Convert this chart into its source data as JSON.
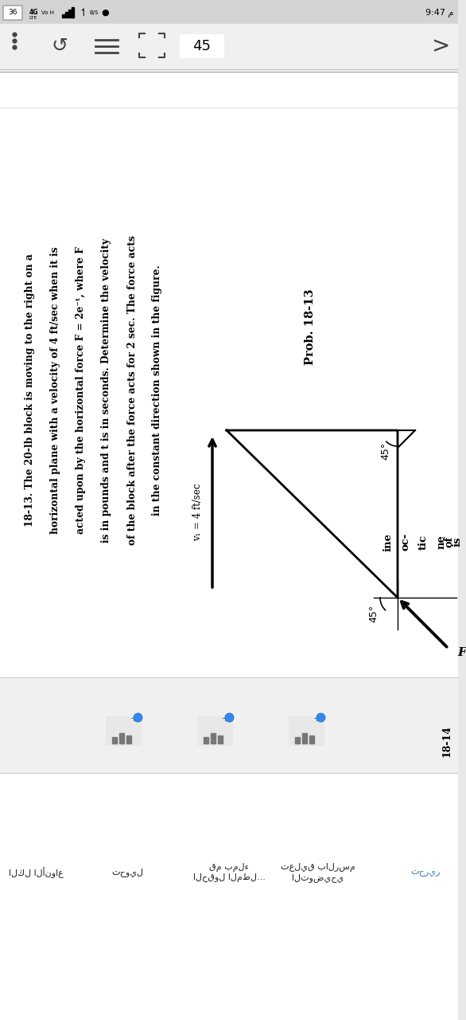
{
  "bg_color": "#e8e8e8",
  "page_bg": "#ffffff",
  "status_bar_text": "9:47 م",
  "nav_number": "45",
  "problem_text_lines": [
    "18-13. The 20-lb block is moving to the right on a",
    "horizontal plane with a velocity of 4 ft/sec when it is",
    "acted upon by the horizontal force F = 2e⁻ᵗ, where F",
    "is in pounds and t is in seconds. Determine the velocity",
    "of the block after the force acts for 2 sec. The force acts",
    "in the constant direction shown in the figure."
  ],
  "prob_label": "Prob. 18-13",
  "v1_label": "v₁ = 4 ft/sec",
  "angle_top": "45°",
  "angle_bottom": "45°",
  "force_label": "F",
  "next_partial_right": [
    "ine",
    "oc-",
    "tic"
  ],
  "next_partial_far": [
    "ne",
    "of",
    "is"
  ],
  "bottom_labels_left_to_right": [
    "الكل الأنواع",
    "تحويل",
    "قم بملء\nالحقول المطل...",
    "تعليق بالرسم\nالتوضيحي",
    "تحرير"
  ],
  "next_problem_partial": "18-14"
}
